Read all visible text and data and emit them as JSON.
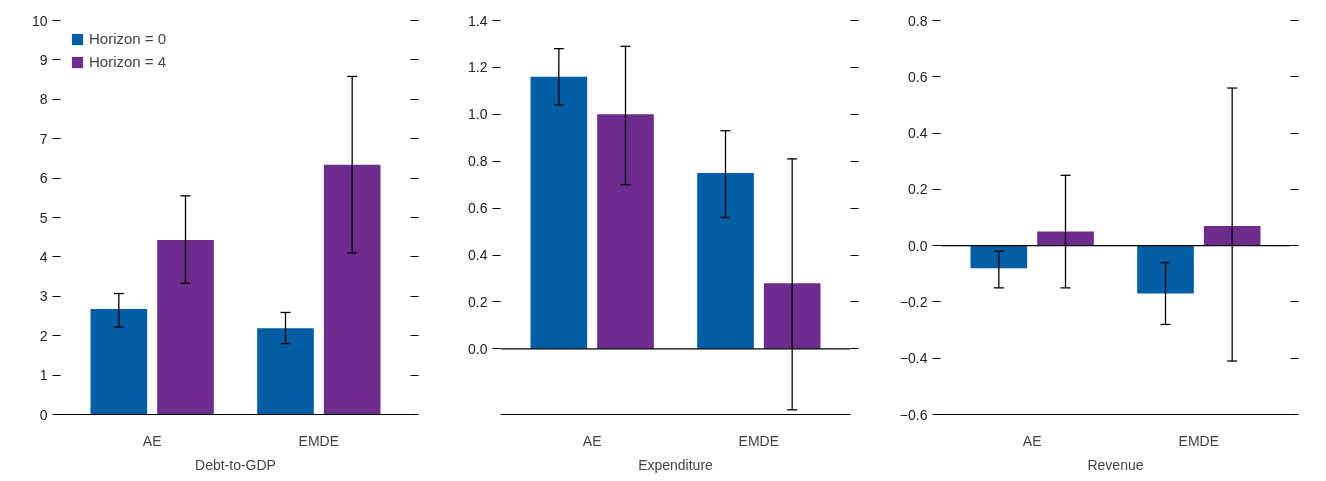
{
  "chart_data": [
    {
      "type": "bar",
      "xlabel": "Debt-to-GDP",
      "categories": [
        "AE",
        "EMDE"
      ],
      "ylim": [
        0,
        10
      ],
      "yticks": [
        0,
        1,
        2,
        3,
        4,
        5,
        6,
        7,
        8,
        9,
        10
      ],
      "legend": "top left",
      "grid": false,
      "series": [
        {
          "name": "Horizon = 0",
          "color": "#035ea6",
          "values": [
            2.68,
            2.19
          ],
          "errors": [
            [
              2.22,
              3.07
            ],
            [
              1.8,
              2.59
            ]
          ]
        },
        {
          "name": "Horizon = 4",
          "color": "#6f2c8f",
          "values": [
            4.43,
            6.34
          ],
          "errors": [
            [
              3.33,
              5.55
            ],
            [
              4.1,
              8.58
            ]
          ]
        }
      ]
    },
    {
      "type": "bar",
      "xlabel": "Expenditure",
      "categories": [
        "AE",
        "EMDE"
      ],
      "ylim": [
        -0.28,
        1.4
      ],
      "yticks": [
        {
          "value": 0,
          "label": "0.0"
        },
        0.2,
        0.4,
        0.6,
        0.8,
        {
          "value": 1,
          "label": "1.0"
        },
        1.2,
        1.4
      ],
      "grid": false,
      "ref_lines": [
        {
          "axis": "y",
          "value": 0,
          "label": null,
          "color": "#000000"
        }
      ],
      "series": [
        {
          "color": "#035ea6",
          "values": [
            1.16,
            0.75
          ],
          "errors": [
            [
              1.04,
              1.28
            ],
            [
              0.56,
              0.93
            ]
          ]
        },
        {
          "color": "#6f2c8f",
          "values": [
            1.0,
            0.28
          ],
          "errors": [
            [
              0.7,
              1.29
            ],
            [
              -0.26,
              0.81
            ]
          ]
        }
      ]
    },
    {
      "type": "bar",
      "xlabel": "Revenue",
      "categories": [
        "AE",
        "EMDE"
      ],
      "ylim": [
        -0.6,
        0.8
      ],
      "yticks": [
        {
          "value": -0.6,
          "label": "−0.6"
        },
        {
          "value": -0.4,
          "label": "−0.4"
        },
        {
          "value": -0.2,
          "label": "−0.2"
        },
        {
          "value": 0,
          "label": "0.0"
        },
        0.2,
        0.4,
        0.6,
        0.8
      ],
      "grid": false,
      "ref_lines": [
        {
          "axis": "y",
          "value": 0,
          "label": null,
          "color": "#000000"
        }
      ],
      "series": [
        {
          "color": "#035ea6",
          "values": [
            -0.08,
            -0.17
          ],
          "errors": [
            [
              -0.15,
              -0.02
            ],
            [
              -0.28,
              -0.06
            ]
          ]
        },
        {
          "color": "#6f2c8f",
          "values": [
            0.05,
            0.07
          ],
          "errors": [
            [
              -0.15,
              0.25
            ],
            [
              -0.41,
              0.56
            ]
          ]
        }
      ]
    }
  ]
}
